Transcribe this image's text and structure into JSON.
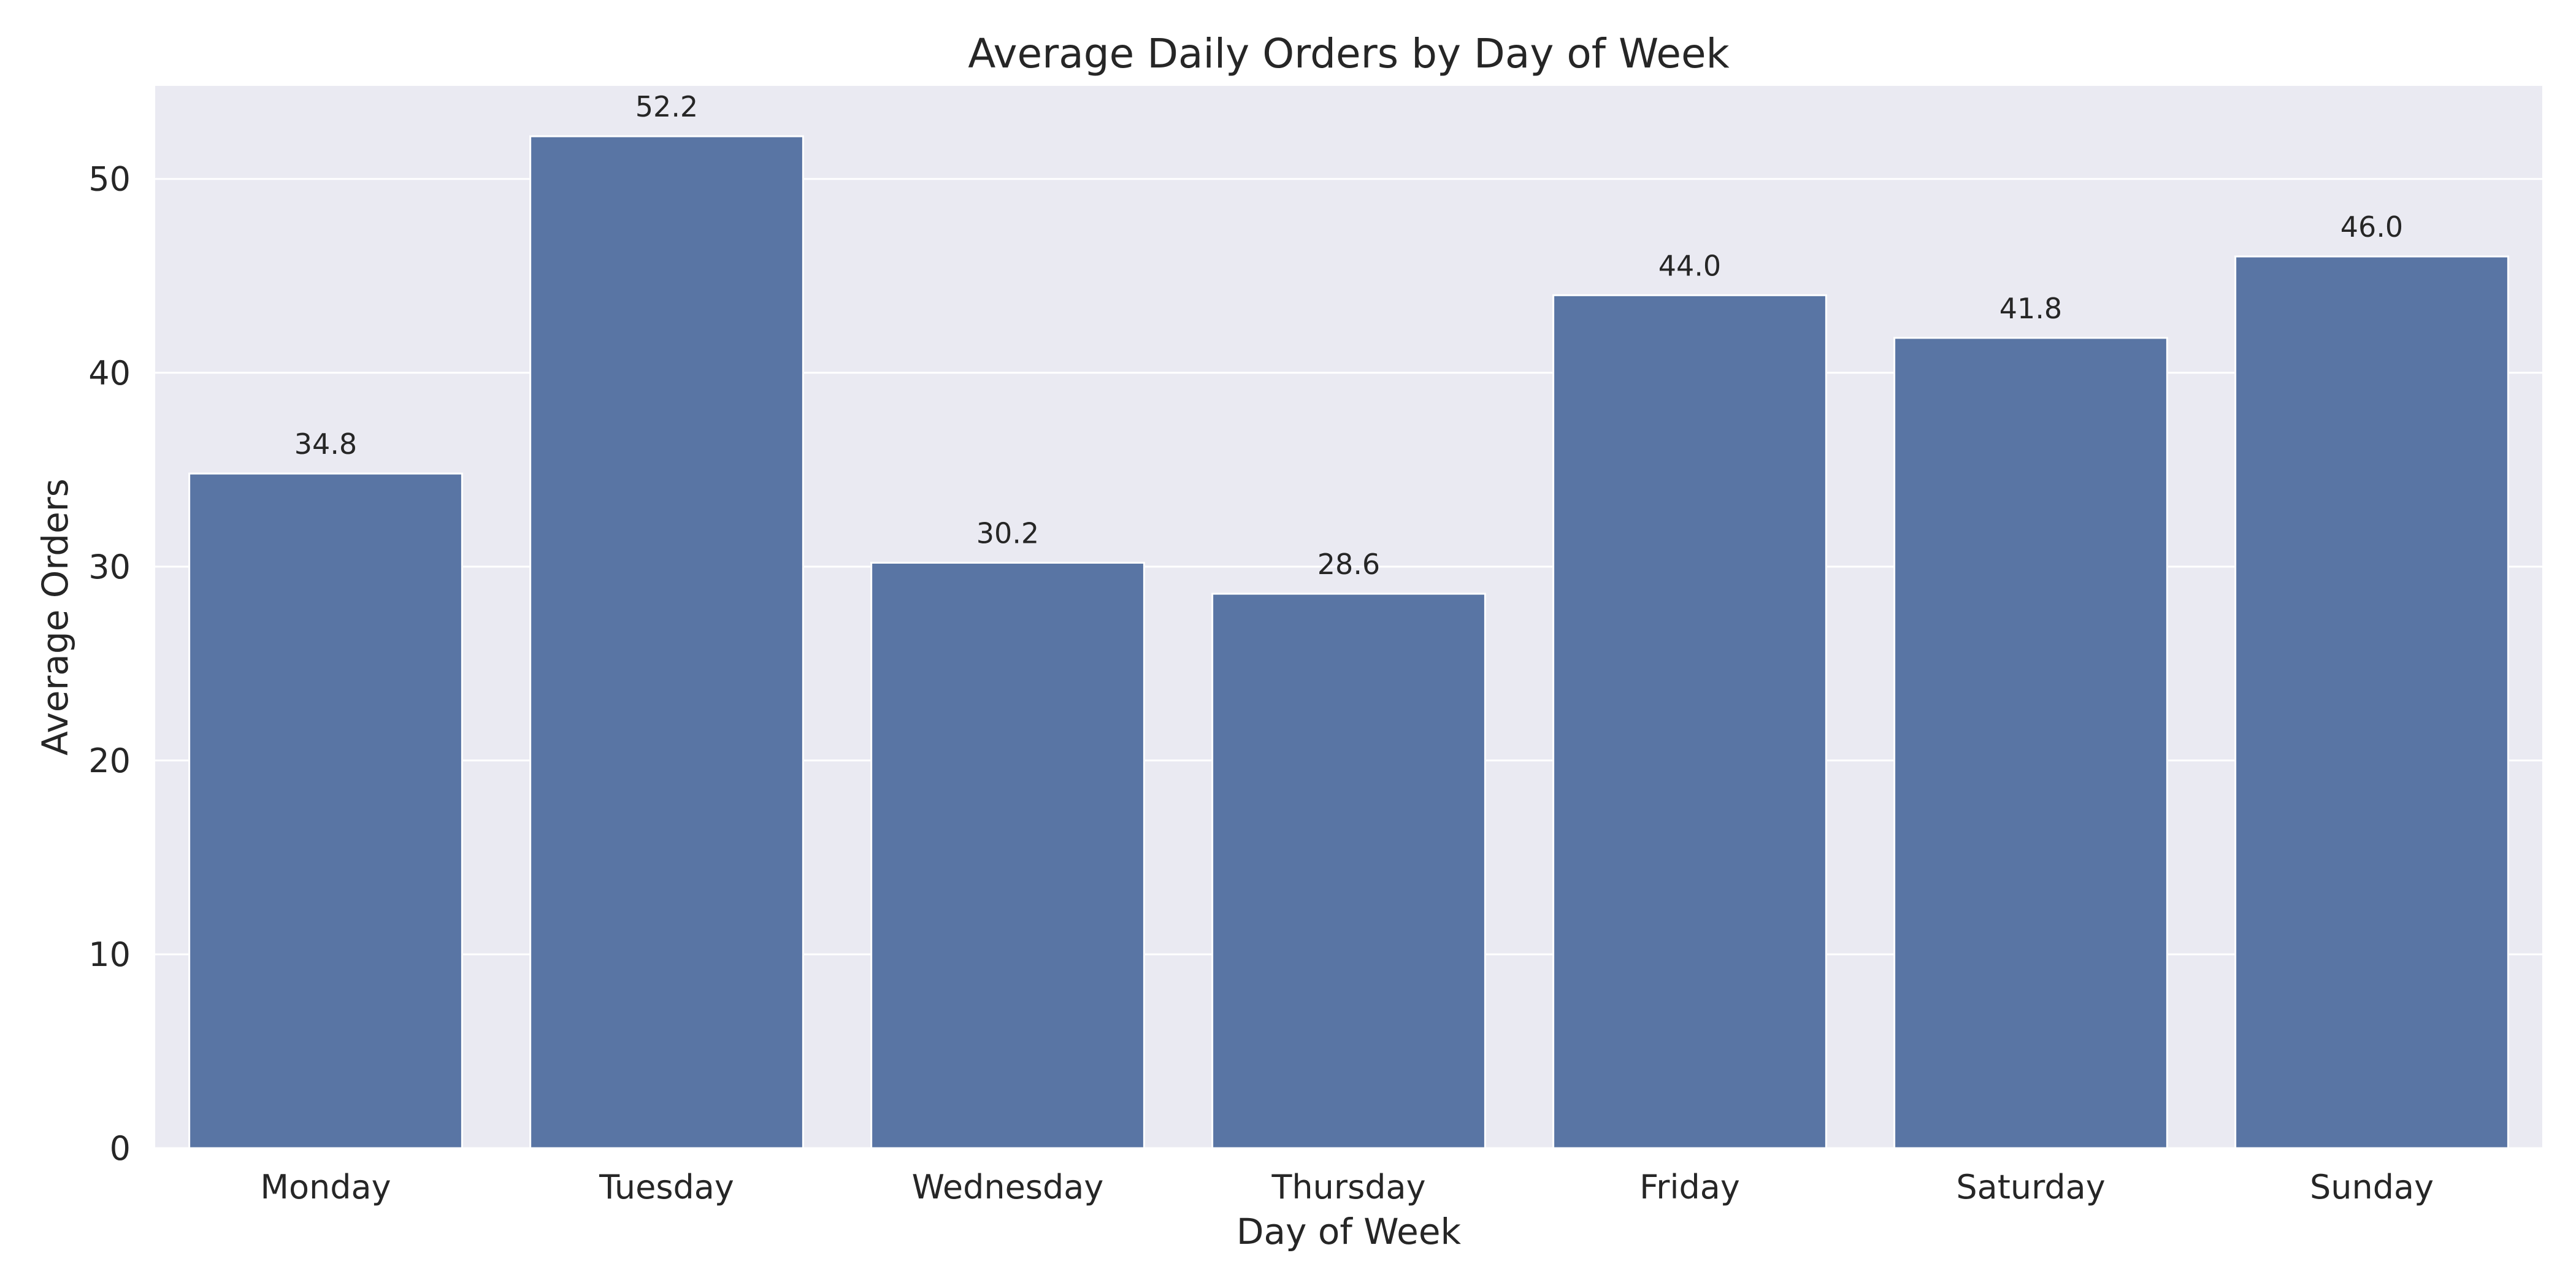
{
  "chart_data": {
    "type": "bar",
    "title": "Average Daily Orders by Day of Week",
    "xlabel": "Day of Week",
    "ylabel": "Average Orders",
    "categories": [
      "Monday",
      "Tuesday",
      "Wednesday",
      "Thursday",
      "Friday",
      "Saturday",
      "Sunday"
    ],
    "values": [
      34.8,
      52.2,
      30.2,
      28.6,
      44.0,
      41.8,
      46.0
    ],
    "data_labels": [
      "34.8",
      "52.2",
      "30.2",
      "28.6",
      "44.0",
      "41.8",
      "46.0"
    ],
    "yticks": [
      0,
      10,
      20,
      30,
      40,
      50
    ],
    "ylim": [
      0,
      54.8
    ],
    "grid": true,
    "legend": "none",
    "colors": {
      "bar": "#5975a4",
      "plot_background": "#eaeaf2",
      "grid": "#ffffff",
      "text": "#262626"
    }
  }
}
